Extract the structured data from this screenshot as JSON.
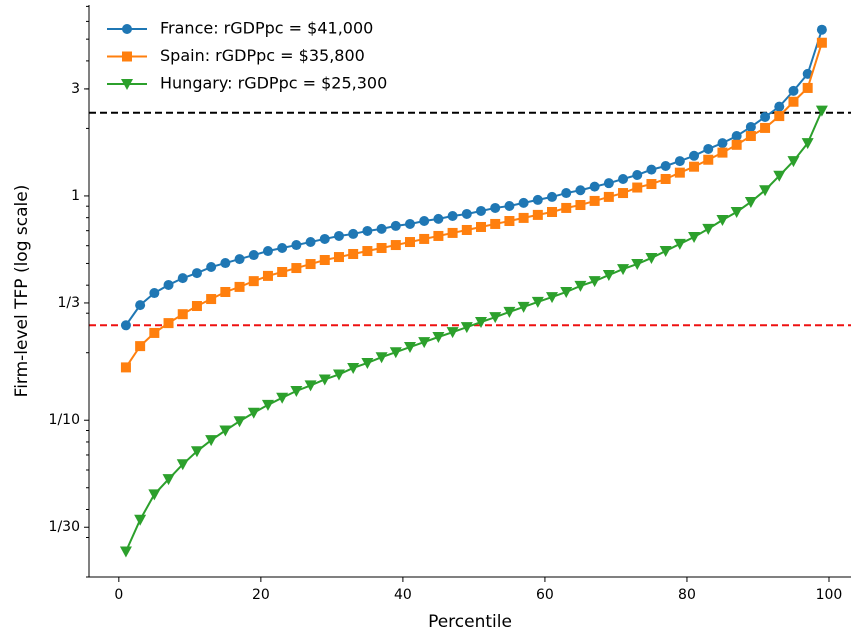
{
  "chart_data": {
    "type": "line",
    "xlabel": "Percentile",
    "ylabel": "Firm-level TFP (log scale)",
    "x": [
      1,
      3,
      5,
      7,
      9,
      11,
      13,
      15,
      17,
      19,
      21,
      23,
      25,
      27,
      29,
      31,
      33,
      35,
      37,
      39,
      41,
      43,
      45,
      47,
      49,
      51,
      53,
      55,
      57,
      59,
      61,
      63,
      65,
      67,
      69,
      71,
      73,
      75,
      77,
      79,
      81,
      83,
      85,
      87,
      89,
      91,
      93,
      95,
      97,
      99
    ],
    "series": [
      {
        "name": "France: rGDPpc = $41,000",
        "color": "#1f77b4",
        "marker": "circle",
        "values": [
          0.265,
          0.326,
          0.369,
          0.401,
          0.43,
          0.453,
          0.482,
          0.502,
          0.523,
          0.545,
          0.568,
          0.586,
          0.604,
          0.623,
          0.643,
          0.663,
          0.677,
          0.698,
          0.713,
          0.735,
          0.75,
          0.773,
          0.79,
          0.814,
          0.831,
          0.857,
          0.884,
          0.902,
          0.931,
          0.96,
          0.99,
          1.03,
          1.06,
          1.1,
          1.14,
          1.19,
          1.24,
          1.31,
          1.36,
          1.43,
          1.51,
          1.62,
          1.72,
          1.85,
          2.03,
          2.25,
          2.5,
          2.94,
          3.5,
          5.51
        ]
      },
      {
        "name": "Spain: rGDPpc = $35,800",
        "color": "#ff7f0e",
        "marker": "square",
        "values": [
          0.172,
          0.214,
          0.245,
          0.271,
          0.297,
          0.323,
          0.347,
          0.373,
          0.393,
          0.417,
          0.44,
          0.458,
          0.477,
          0.497,
          0.518,
          0.534,
          0.551,
          0.568,
          0.586,
          0.604,
          0.623,
          0.643,
          0.663,
          0.684,
          0.705,
          0.727,
          0.75,
          0.773,
          0.798,
          0.823,
          0.848,
          0.884,
          0.911,
          0.95,
          0.99,
          1.03,
          1.09,
          1.13,
          1.19,
          1.27,
          1.35,
          1.45,
          1.56,
          1.69,
          1.85,
          2.01,
          2.27,
          2.63,
          3.03,
          4.82
        ]
      },
      {
        "name": "Hungary: rGDPpc = $25,300",
        "color": "#2ca02c",
        "marker": "triangle-down",
        "values": [
          0.026,
          0.036,
          0.0467,
          0.0546,
          0.0636,
          0.0727,
          0.0815,
          0.09,
          0.099,
          0.108,
          0.117,
          0.126,
          0.135,
          0.143,
          0.152,
          0.16,
          0.171,
          0.18,
          0.191,
          0.201,
          0.212,
          0.223,
          0.235,
          0.247,
          0.26,
          0.274,
          0.288,
          0.304,
          0.32,
          0.337,
          0.354,
          0.373,
          0.397,
          0.417,
          0.444,
          0.472,
          0.497,
          0.529,
          0.568,
          0.611,
          0.656,
          0.713,
          0.781,
          0.848,
          0.94,
          1.06,
          1.23,
          1.43,
          1.72,
          2.4
        ]
      }
    ],
    "reference_lines": [
      {
        "value": 2.35,
        "color": "#000000"
      },
      {
        "value": 0.265,
        "color": "#ee1111"
      }
    ],
    "xlim": [
      -4.2,
      103.1
    ],
    "xticks": [
      0,
      20,
      40,
      60,
      80,
      100
    ],
    "ylim": [
      0.02,
      7.1
    ],
    "log_y": true,
    "yticks": [
      {
        "value": 0.0333333,
        "label": "1/30"
      },
      {
        "value": 0.1,
        "label": "1/10"
      },
      {
        "value": 0.333333,
        "label": "1/3"
      },
      1,
      3
    ],
    "yminorticks": [
      0.02,
      0.03,
      0.04,
      0.05,
      0.06,
      0.07,
      0.08,
      0.09,
      0.2,
      0.3,
      0.4,
      0.5,
      0.6,
      0.7,
      0.8,
      0.9,
      2,
      3,
      4,
      5,
      6,
      7
    ],
    "legend": "upper-left"
  }
}
